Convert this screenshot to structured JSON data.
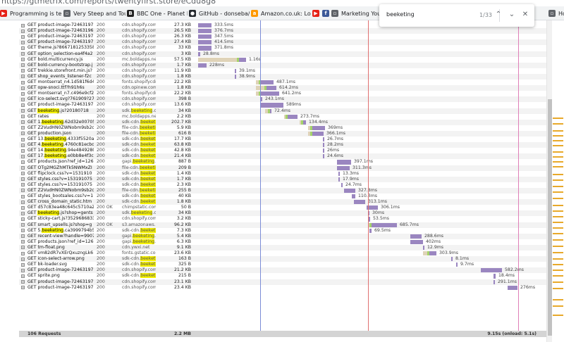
{
  "browser": {
    "url": "https://gtmetrix.com/reports/twentyfirst.store/eCdu8g8",
    "bookmarks": [
      {
        "label": "Programming is terrible",
        "icon": "youtube-icon",
        "color": "#e62117"
      },
      {
        "label": "Very Steep and Tough",
        "icon": "bookmark-icon",
        "color": "#5f6368"
      },
      {
        "label": "BBC One - Planet Earth",
        "icon": "bbc-icon",
        "color": "#222222"
      },
      {
        "label": "GitHub - donseba/go",
        "icon": "github-icon",
        "color": "#24292e"
      },
      {
        "label": "Amazon.co.uk: Low",
        "icon": "amazon-icon",
        "color": "#ff9900"
      },
      {
        "label": "",
        "icon": "youtube-icon",
        "color": "#e62117"
      },
      {
        "label": "",
        "icon": "facebook-icon",
        "color": "#3b5998"
      },
      {
        "label": "Marketing Your",
        "icon": "bookmark-icon",
        "color": "#5f6368"
      },
      {
        "label": "How To Use S",
        "icon": "bookmark-icon",
        "color": "#5f6368"
      }
    ]
  },
  "find_bar": {
    "query": "beeketing",
    "count": "1/33",
    "up_icon": "chevron-up-icon",
    "down_icon": "chevron-down-icon",
    "close_icon": "close-icon",
    "up_glyph": "⌃",
    "down_glyph": "⌄",
    "close_glyph": "✕"
  },
  "requests": [
    {
      "u": [
        "GET product-image-72463197"
      ],
      "s": "200",
      "d": [
        "cdn.shopify.com"
      ],
      "z": "27.3 KB",
      "start": 281,
      "a": 0,
      "b": 19,
      "t": "333.5ms"
    },
    {
      "u": [
        "GET product-image-72463196"
      ],
      "s": "200",
      "d": [
        "cdn.shopify.com"
      ],
      "z": "26.5 KB",
      "start": 281,
      "a": 0,
      "b": 19,
      "t": "376.7ms"
    },
    {
      "u": [
        "GET product-image-72463197"
      ],
      "s": "200",
      "d": [
        "cdn.shopify.com"
      ],
      "z": "26.3 KB",
      "start": 281,
      "a": 0,
      "b": 19,
      "t": "347.5ms"
    },
    {
      "u": [
        "GET product-image-72463197"
      ],
      "s": "200",
      "d": [
        "cdn.shopify.com"
      ],
      "z": "27.4 KB",
      "start": 281,
      "a": 0,
      "b": 19,
      "t": "414.5ms"
    },
    {
      "u": [
        "GET theme.js?8667181253358"
      ],
      "s": "200",
      "d": [
        "cdn.shopify.com"
      ],
      "z": "33 KB",
      "start": 281,
      "a": 0,
      "b": 19,
      "t": "371.8ms"
    },
    {
      "u": [
        "GET option_selection-ea4f4a2"
      ],
      "s": "200",
      "d": [
        "cdn.shopify.com"
      ],
      "z": "3 KB",
      "start": 281,
      "a": 0,
      "b": 3,
      "t": "28.8ms"
    },
    {
      "u": [
        "GET bold.multicurrency.js"
      ],
      "s": "200",
      "d": [
        "mc.boldapps.net"
      ],
      "z": "57.5 KB",
      "start": 281,
      "a": 55,
      "b": 10,
      "t": "1.16s"
    },
    {
      "u": [
        "GET bold-currency-bootstrap.j"
      ],
      "s": "200",
      "d": [
        "cdn.shopify.com"
      ],
      "z": "1.7 KB",
      "start": 281,
      "a": 0,
      "b": 12,
      "t": "228ms"
    },
    {
      "u": [
        "GET trekkie.storefront.min.js?"
      ],
      "s": "200",
      "d": [
        "cdn.shopify.com"
      ],
      "z": "11.9 KB",
      "start": 333,
      "a": 0,
      "b": 2,
      "t": "39.1ms"
    },
    {
      "u": [
        "GET shop_events_listener-f2c"
      ],
      "s": "200",
      "d": [
        "cdn.shopify.com"
      ],
      "z": "1.8 KB",
      "start": 333,
      "a": 0,
      "b": 2,
      "t": "38.9ms"
    },
    {
      "u": [
        "GET montserrat_n4.1d581f6d4"
      ],
      "s": "200",
      "d": [
        "fonts.shopifycdn"
      ],
      "z": "22.2 KB",
      "start": 363,
      "a": 4,
      "b": 18,
      "t": "487.1ms"
    },
    {
      "u": [
        "GET opw-snoci.ttf?h91h6s"
      ],
      "s": "200",
      "d": [
        "cdn.opinew.com"
      ],
      "z": "1.8 KB",
      "start": 363,
      "a": 12,
      "b": 14,
      "t": "614.2ms"
    },
    {
      "u": [
        "GET montserrat_n7.c496e9cf2"
      ],
      "s": "200",
      "d": [
        "fonts.shopifycdn"
      ],
      "z": "22.2 KB",
      "start": 363,
      "a": 4,
      "b": 26,
      "t": "641.2ms"
    },
    {
      "u": [
        "GET ico-select.svg?761909?27"
      ],
      "s": "200",
      "d": [
        "cdn.shopify.com"
      ],
      "z": "398 B",
      "start": 370,
      "a": 0,
      "b": 2,
      "t": "243.1ms"
    },
    {
      "u": [
        "GET product-image-72463197"
      ],
      "s": "200",
      "d": [
        "cdn.shopify.com"
      ],
      "z": "13.6 KB",
      "start": 370,
      "a": 0,
      "b": 32,
      "t": "589ms"
    },
    {
      "u": [
        "GET ",
        {
          "h": "beeketing"
        },
        ".js?20180718"
      ],
      "s": "200",
      "d": [
        "sdk.",
        {
          "h": "beeketing"
        },
        ".co"
      ],
      "z": "34 KB",
      "start": 376,
      "a": 4,
      "b": 2,
      "t": "72.4ms"
    },
    {
      "u": [
        "GET rates"
      ],
      "s": "200",
      "d": [
        "mc.boldapps.net"
      ],
      "z": "2.2 KB",
      "start": 403,
      "a": 2,
      "b": 14,
      "t": "273.7ms"
    },
    {
      "u": [
        "GET 1.",
        {
          "h": "beeketing"
        },
        ".62d32e00705"
      ],
      "s": "200",
      "d": [
        "sdk-cdn.",
        {
          "h": "beeketing"
        }
      ],
      "z": "202.7 KB",
      "start": 425,
      "a": 2,
      "b": 4,
      "t": "134.4ms"
    },
    {
      "u": [
        "GET Z2VudHN0ZWNobm9sb2c"
      ],
      "s": "200",
      "d": [
        "file-cdn.",
        {
          "h": "beeketing"
        }
      ],
      "z": "5.9 KB",
      "start": 437,
      "a": 3,
      "b": 18,
      "t": "369ms"
    },
    {
      "u": [
        "GET production.json"
      ],
      "s": "200",
      "d": [
        "file-cdn.",
        {
          "h": "beeketing"
        }
      ],
      "z": "616 B",
      "start": 437,
      "a": 3,
      "b": 16,
      "t": "366.1ms"
    },
    {
      "u": [
        "GET 13.",
        {
          "h": "beeketing"
        },
        ".4333f5520a7"
      ],
      "s": "200",
      "d": [
        "sdk-cdn.",
        {
          "h": "beeketing"
        }
      ],
      "z": "17.7 KB",
      "start": 458,
      "a": 0,
      "b": 2,
      "t": "26.7ms"
    },
    {
      "u": [
        "GET 4.",
        {
          "h": "beeketing"
        },
        ".4760c81ecbd"
      ],
      "s": "200",
      "d": [
        "sdk-cdn.",
        {
          "h": "beeketing"
        }
      ],
      "z": "63.8 KB",
      "start": 458,
      "a": 0,
      "b": 2,
      "t": "28.2ms"
    },
    {
      "u": [
        "GET 14.",
        {
          "h": "beeketing"
        },
        ".94e4849280"
      ],
      "s": "200",
      "d": [
        "sdk-cdn.",
        {
          "h": "beeketing"
        }
      ],
      "z": "42.8 KB",
      "start": 458,
      "a": 0,
      "b": 2,
      "t": "26ms"
    },
    {
      "u": [
        "GET 17.",
        {
          "h": "beeketing"
        },
        ".e0bb8e4f3c"
      ],
      "s": "200",
      "d": [
        "sdk-cdn.",
        {
          "h": "beeketing"
        }
      ],
      "z": "21.4 KB",
      "start": 458,
      "a": 0,
      "b": 2,
      "t": "24.6ms"
    },
    {
      "u": [
        "GET products.json?ref_id=126"
      ],
      "s": "200",
      "d": [
        "gapi.",
        {
          "h": "beeketing"
        },
        ".c"
      ],
      "z": "887 B",
      "start": 478,
      "a": 0,
      "b": 20,
      "t": "397.1ms"
    },
    {
      "u": [
        "GET OTg2MGZhMTk5NWMxZI"
      ],
      "s": "200",
      "d": [
        "file-cdn.",
        {
          "h": "beeketing"
        }
      ],
      "z": "209 B",
      "start": 478,
      "a": 0,
      "b": 18,
      "t": "311.3ms"
    },
    {
      "u": [
        "GET flipclock.css?v=1531910"
      ],
      "s": "200",
      "d": [
        "sdk-cdn.",
        {
          "h": "beeketing"
        }
      ],
      "z": "1.4 KB",
      "start": 480,
      "a": 0,
      "b": 2,
      "t": "13.3ms"
    },
    {
      "u": [
        "GET styles.css?v=153191075"
      ],
      "s": "200",
      "d": [
        "sdk-cdn.",
        {
          "h": "beeketing"
        }
      ],
      "z": "1.7 KB",
      "start": 480,
      "a": 0,
      "b": 2,
      "t": "17.9ms"
    },
    {
      "u": [
        "GET styles.css?v=153191075"
      ],
      "s": "200",
      "d": [
        "sdk-cdn.",
        {
          "h": "beeketing"
        }
      ],
      "z": "2.3 KB",
      "start": 484,
      "a": 0,
      "b": 2,
      "t": "24.7ms"
    },
    {
      "u": [
        "GET Z2VudHN0ZWNobm9sb2c"
      ],
      "s": "200",
      "d": [
        "file-cdn.",
        {
          "h": "beeketing"
        }
      ],
      "z": "255 B",
      "start": 488,
      "a": 0,
      "b": 16,
      "t": "327.8ms"
    },
    {
      "u": [
        "GET styles_bootsales.css?v=1"
      ],
      "s": "200",
      "d": [
        "sdk-cdn.",
        {
          "h": "beeketing"
        }
      ],
      "z": "40 KB",
      "start": 499,
      "a": 0,
      "b": 5,
      "t": "110.3ms"
    },
    {
      "u": [
        "GET cross_domain_static.htm"
      ],
      "s": "200",
      "d": [
        "sdk-cdn.",
        {
          "h": "beeketing"
        }
      ],
      "z": "1.8 KB",
      "start": 502,
      "a": 0,
      "b": 16,
      "t": "313.1ms"
    },
    {
      "u": [
        "GET d57c83ea48c645c5710a24"
      ],
      "s": "200 OK",
      "d": [
        "chimpstatic.com"
      ],
      "z": "50 B",
      "start": 520,
      "a": 0,
      "b": 16,
      "t": "306.1ms"
    },
    {
      "u": [
        "GET ",
        {
          "h": "beeketing"
        },
        ".js?shop=gents"
      ],
      "s": "200",
      "d": [
        "sdk.",
        {
          "h": "beeketing"
        },
        ".co"
      ],
      "z": "34 KB",
      "start": 522,
      "a": 0,
      "b": 2,
      "t": "30ms"
    },
    {
      "u": [
        "GET sticky-cart.js?3529686833"
      ],
      "s": "200",
      "d": [
        "cdn.shopify.com"
      ],
      "z": "3.2 KB",
      "start": 522,
      "a": 0,
      "b": 3,
      "t": "53.5ms"
    },
    {
      "u": [
        "GET smart_upsells.js?shop=g"
      ],
      "s": "200 OK",
      "d": [
        "s3.amazonaws.c"
      ],
      "z": "96.2 KB",
      "start": 522,
      "a": 2,
      "b": 36,
      "t": "685.7ms"
    },
    {
      "u": [
        "GET 5.",
        {
          "h": "beeketing"
        },
        ".ca3999794b5"
      ],
      "s": "200",
      "d": [
        "sdk-cdn.",
        {
          "h": "beeketing"
        }
      ],
      "z": "7.3 KB",
      "start": 524,
      "a": 0,
      "b": 3,
      "t": "69.5ms"
    },
    {
      "u": [
        "GET recent-view?handle=9907"
      ],
      "s": "200",
      "d": [
        "gapi.",
        {
          "h": "beeketing"
        },
        ".c"
      ],
      "z": "5.4 KB",
      "start": 582,
      "a": 0,
      "b": 16,
      "t": "288.6ms"
    },
    {
      "u": [
        "GET products.json?ref_id=126"
      ],
      "s": "200",
      "d": [
        "gapi.",
        {
          "h": "beeketing"
        },
        ".c"
      ],
      "z": "6.3 KB",
      "start": 582,
      "a": 0,
      "b": 18,
      "t": "402ms"
    },
    {
      "u": [
        "GET tm-float.png"
      ],
      "s": "200",
      "d": [
        "cdn.ywxi.net"
      ],
      "z": "9.1 KB",
      "start": 600,
      "a": 0,
      "b": 2,
      "t": "12.9ms"
    },
    {
      "u": [
        "GET vm82dR7vXErQxuzngLk6"
      ],
      "s": "200",
      "d": [
        "fonts.gstatic.co"
      ],
      "z": "23.6 KB",
      "start": 600,
      "a": 6,
      "b": 10,
      "t": "303.9ms"
    },
    {
      "u": [
        "GET icon-select-arrow.png"
      ],
      "s": "200",
      "d": [
        "sdk-cdn.",
        {
          "h": "beeketing"
        }
      ],
      "z": "163 B",
      "start": 640,
      "a": 0,
      "b": 2,
      "t": "8.1ms"
    },
    {
      "u": [
        "GET bk-loader.svg"
      ],
      "s": "200",
      "d": [
        "sdk-cdn.",
        {
          "h": "beeketing"
        }
      ],
      "z": "325 B",
      "start": 647,
      "a": 0,
      "b": 2,
      "t": "9.7ms"
    },
    {
      "u": [
        "GET product-image-72463197"
      ],
      "s": "200",
      "d": [
        "cdn.shopify.com"
      ],
      "z": "21.2 KB",
      "start": 682,
      "a": 0,
      "b": 30,
      "t": "582.2ms"
    },
    {
      "u": [
        "GET sprite.png"
      ],
      "s": "200",
      "d": [
        "sdk-cdn.",
        {
          "h": "beeketing"
        }
      ],
      "z": "215 B",
      "start": 700,
      "a": 0,
      "b": 3,
      "t": "18.4ms"
    },
    {
      "u": [
        "GET product-image-72463197"
      ],
      "s": "200",
      "d": [
        "cdn.shopify.com"
      ],
      "z": "23.1 KB",
      "start": 700,
      "a": 0,
      "b": 2,
      "t": "291.1ms"
    },
    {
      "u": [
        "GET product-image-72463197"
      ],
      "s": "200",
      "d": [
        "cdn.shopify.com"
      ],
      "z": "23.4 KB",
      "start": 720,
      "a": 0,
      "b": 14,
      "t": "276ms"
    }
  ],
  "summary": {
    "requests": "106 Requests",
    "size": "2.2 MB",
    "time": "9.15s (onload: 5.1s)"
  },
  "colors": {
    "dns": "#c8c8a0",
    "connect": "#dfd3b8",
    "wait": "#a4d36b",
    "receive": "#9a86c0",
    "line_blue": "#7b8cd6",
    "line_red": "#e07070",
    "line_pink": "#e07fb8",
    "highlight": "#f5f100"
  }
}
